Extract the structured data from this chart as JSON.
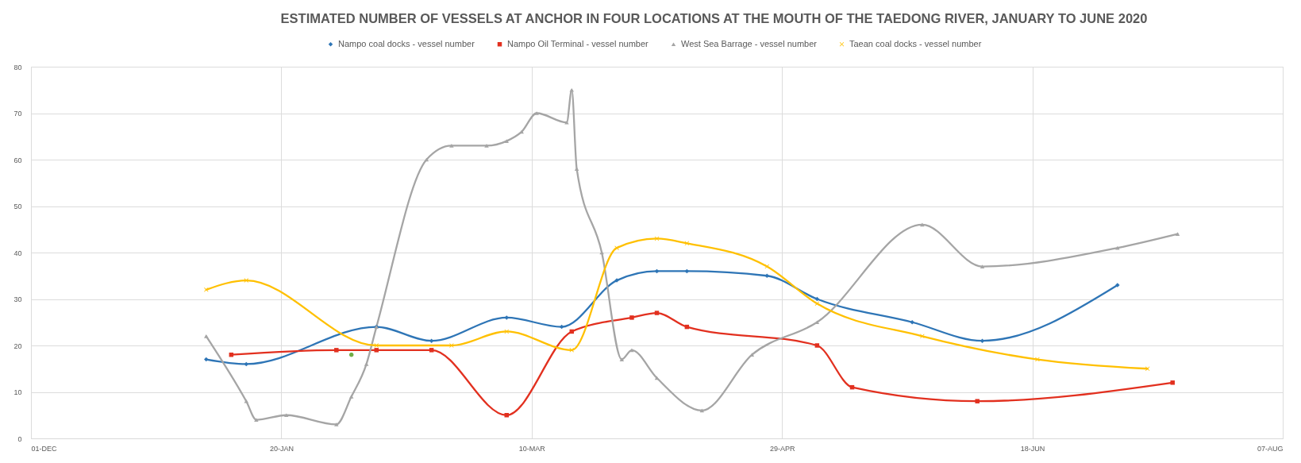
{
  "chart_data": {
    "type": "line",
    "title": "ESTIMATED NUMBER OF VESSELS AT ANCHOR IN FOUR LOCATIONS AT THE MOUTH OF THE TAEDONG RIVER, JANUARY TO JUNE 2020",
    "series": [
      {
        "name": "Nampo coal docks - vessel number",
        "color": "#2e75b6",
        "marker": "diamond",
        "x": [
          "2020-01-05",
          "2020-01-13",
          "2020-02-08",
          "2020-02-19",
          "2020-03-05",
          "2020-03-16",
          "2020-03-27",
          "2020-04-04",
          "2020-04-10",
          "2020-04-26",
          "2020-05-06",
          "2020-05-25",
          "2020-06-08",
          "2020-07-05"
        ],
        "values": [
          17,
          16,
          24,
          21,
          26,
          24,
          34,
          36,
          36,
          35,
          30,
          25,
          21,
          33
        ]
      },
      {
        "name": "Nampo Oil Terminal - vessel number",
        "color": "#e2301f",
        "marker": "square",
        "x": [
          "2020-01-10",
          "2020-01-31",
          "2020-02-08",
          "2020-02-19",
          "2020-03-05",
          "2020-03-18",
          "2020-03-30",
          "2020-04-04",
          "2020-04-10",
          "2020-05-06",
          "2020-05-13",
          "2020-06-07",
          "2020-07-16"
        ],
        "values": [
          18,
          19,
          19,
          19,
          5,
          23,
          26,
          27,
          24,
          20,
          11,
          8,
          12
        ]
      },
      {
        "name": "West Sea Barrage - vessel number",
        "color": "#a5a5a5",
        "marker": "triangle",
        "x": [
          "2020-01-05",
          "2020-01-13",
          "2020-01-15",
          "2020-01-21",
          "2020-01-31",
          "2020-02-03",
          "2020-02-06",
          "2020-02-08",
          "2020-02-18",
          "2020-02-23",
          "2020-03-01",
          "2020-03-05",
          "2020-03-08",
          "2020-03-11",
          "2020-03-17",
          "2020-03-18",
          "2020-03-19",
          "2020-03-24",
          "2020-03-28",
          "2020-03-30",
          "2020-04-04",
          "2020-04-13",
          "2020-04-23",
          "2020-05-06",
          "2020-05-27",
          "2020-06-08",
          "2020-07-05",
          "2020-07-17"
        ],
        "values": [
          22,
          8,
          4,
          5,
          3,
          9,
          16,
          24,
          60,
          63,
          63,
          64,
          66,
          70,
          68,
          75,
          58,
          40,
          17,
          19,
          13,
          6,
          18,
          25,
          46,
          37,
          41,
          44
        ]
      },
      {
        "name": "Taean coal docks - vessel number",
        "color": "#ffc000",
        "marker": "cross",
        "x": [
          "2020-01-05",
          "2020-01-13",
          "2020-02-08",
          "2020-02-23",
          "2020-03-05",
          "2020-03-18",
          "2020-03-27",
          "2020-04-04",
          "2020-04-10",
          "2020-04-26",
          "2020-05-06",
          "2020-05-27",
          "2020-06-19",
          "2020-07-11"
        ],
        "values": [
          32,
          34,
          20,
          20,
          23,
          19,
          41,
          43,
          42,
          37,
          29,
          22,
          17,
          15
        ]
      },
      {
        "type": "scatter",
        "color": "#70ad47",
        "marker": "circle",
        "x": [
          "2020-02-03"
        ],
        "values": [
          18
        ]
      }
    ],
    "xlim": [
      "2019-12-01",
      "2020-08-07"
    ],
    "xticks": [
      {
        "value": "2019-12-01",
        "label": "01-DEC"
      },
      {
        "value": "2020-01-20",
        "label": "20-JAN"
      },
      {
        "value": "2020-03-10",
        "label": "10-MAR"
      },
      {
        "value": "2020-04-29",
        "label": "29-APR"
      },
      {
        "value": "2020-06-18",
        "label": "18-JUN"
      },
      {
        "value": "2020-08-07",
        "label": "07-AUG"
      }
    ],
    "ylim": [
      0,
      80
    ],
    "yticks": [
      0,
      10,
      20,
      30,
      40,
      50,
      60,
      70,
      80
    ],
    "grid": true,
    "legend": "top"
  }
}
